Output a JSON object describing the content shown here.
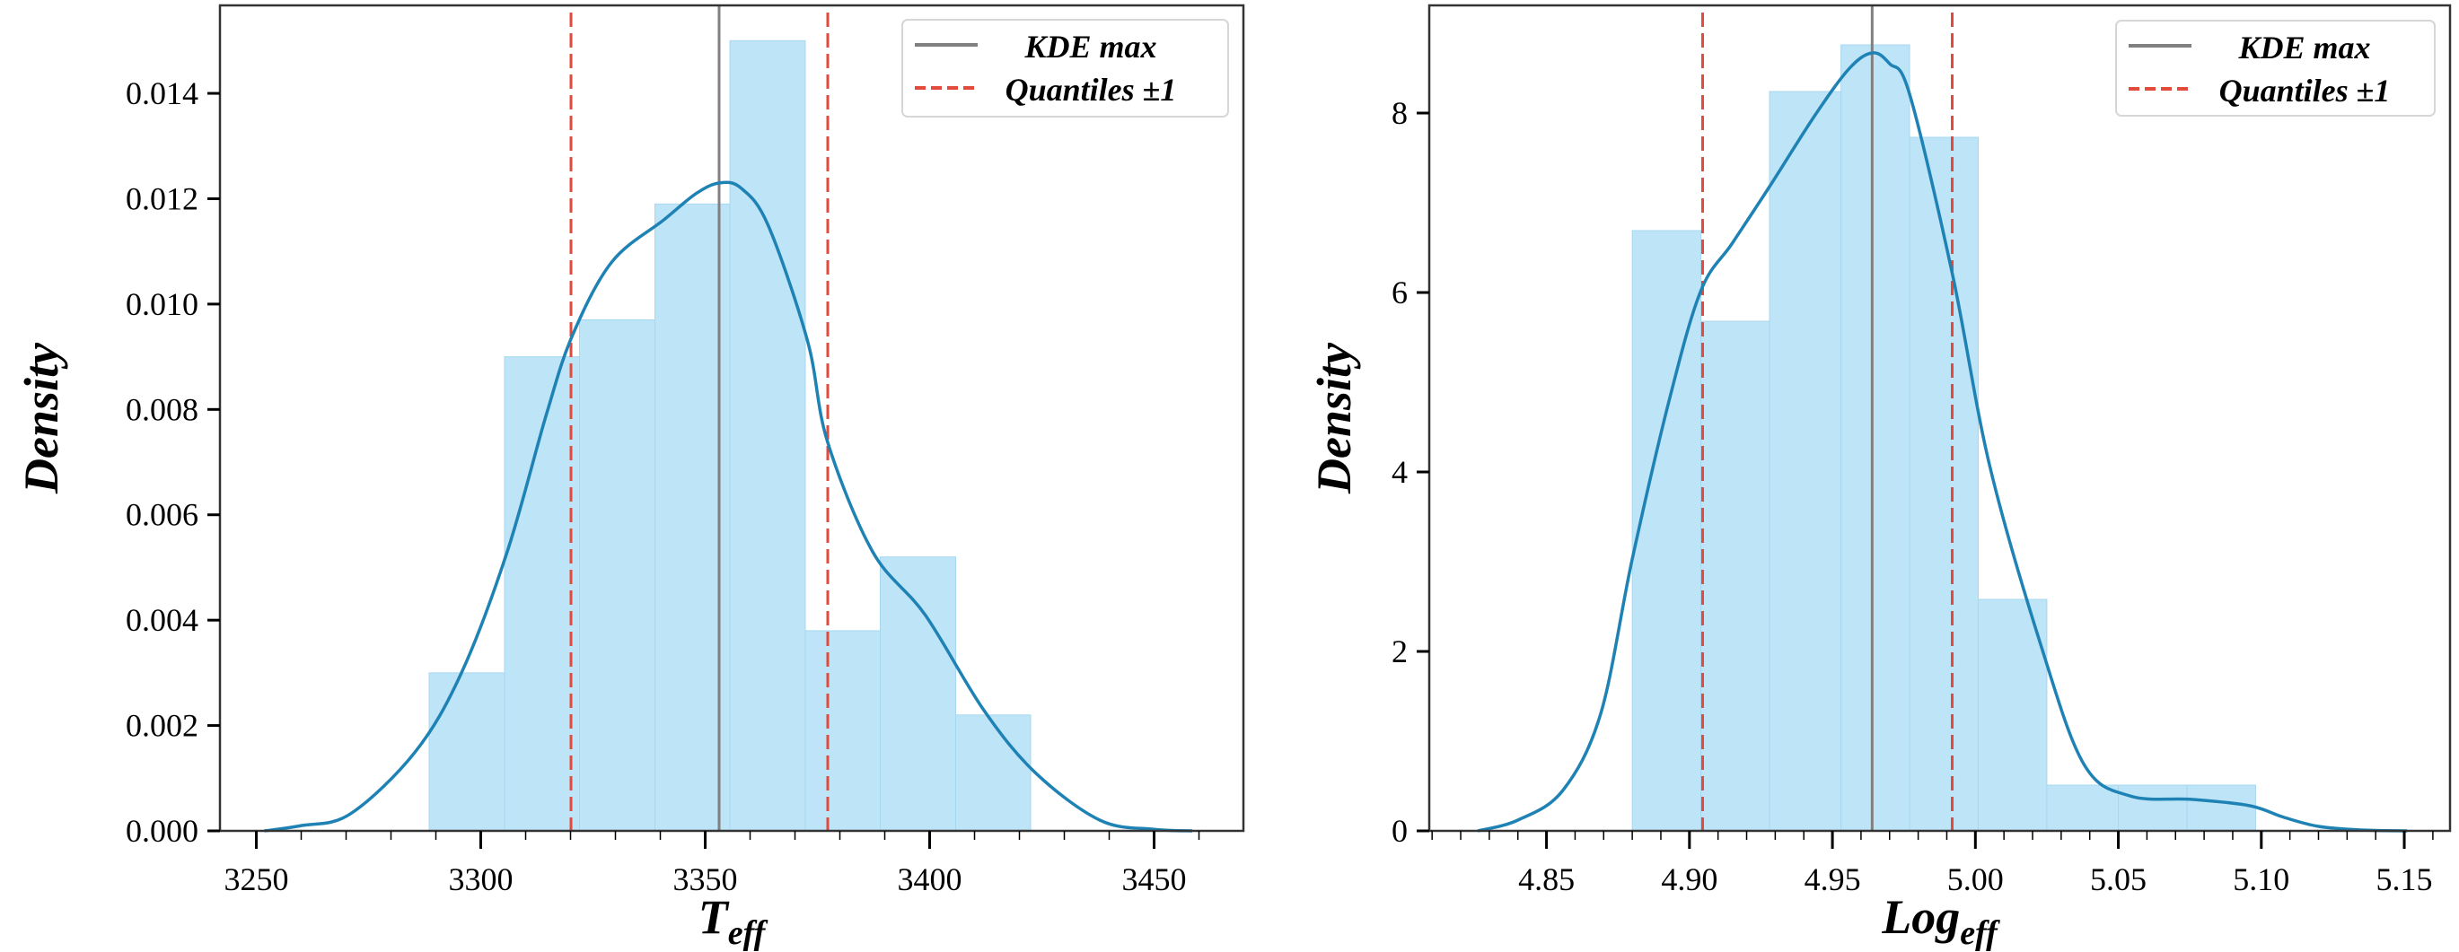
{
  "chart_data": [
    {
      "type": "bar",
      "subtype": "histogram_with_kde",
      "title": "",
      "xlabel": "T",
      "xlabel_sub": "eff",
      "ylabel": "Density",
      "xlim": [
        3241.9,
        3469.9
      ],
      "ylim": [
        0,
        0.01567
      ],
      "xticks": [
        3250,
        3300,
        3350,
        3400,
        3450
      ],
      "xtick_labels": [
        "3250",
        "3300",
        "3350",
        "3400",
        "3450"
      ],
      "x_minor_step": 10,
      "yticks": [
        0,
        0.002,
        0.004,
        0.006,
        0.008,
        0.01,
        0.012,
        0.014
      ],
      "ytick_labels": [
        "0.000",
        "0.002",
        "0.004",
        "0.006",
        "0.008",
        "0.010",
        "0.012",
        "0.014"
      ],
      "grid": false,
      "legend_position": "top-right",
      "bins": [
        3288.5,
        3305.3,
        3322.0,
        3338.8,
        3355.5,
        3372.3,
        3389.0,
        3405.8,
        3422.5
      ],
      "values": [
        0.003,
        0.009,
        0.0097,
        0.0119,
        0.015,
        0.0038,
        0.0052,
        0.0022
      ],
      "kde": {
        "x": [
          3251.8,
          3260,
          3270.9,
          3285.4,
          3295.7,
          3305.9,
          3314.6,
          3320.4,
          3329.2,
          3340.8,
          3348,
          3353.2,
          3358,
          3364,
          3372.8,
          3377.2,
          3387.3,
          3399,
          3412,
          3423.6,
          3438,
          3450,
          3458.5
        ],
        "y": [
          0.0,
          0.0001,
          0.00032,
          0.0015,
          0.003,
          0.0053,
          0.0079,
          0.0094,
          0.0108,
          0.0116,
          0.0121,
          0.0123,
          0.0122,
          0.0115,
          0.0093,
          0.0074,
          0.0053,
          0.0041,
          0.0023,
          0.0011,
          0.0002,
          3e-05,
          0.0
        ]
      },
      "kde_max": 3353.1,
      "quantiles": [
        3320.1,
        3377.3
      ],
      "legend": [
        {
          "label": "KDE max",
          "style": "solid",
          "color": "#808080"
        },
        {
          "label": "Quantiles ±1",
          "style": "dashed",
          "color": "#e24a3b"
        }
      ]
    },
    {
      "type": "bar",
      "subtype": "histogram_with_kde",
      "title": "",
      "xlabel": "Log",
      "xlabel_sub": "eff",
      "ylabel": "Density",
      "xlim": [
        4.809,
        5.166
      ],
      "ylim": [
        0,
        9.2
      ],
      "xticks": [
        4.85,
        4.9,
        4.95,
        5.0,
        5.05,
        5.1,
        5.15
      ],
      "xtick_labels": [
        "4.85",
        "4.90",
        "4.95",
        "5.00",
        "5.05",
        "5.10",
        "5.15"
      ],
      "x_minor_step": 0.01,
      "yticks": [
        0,
        2,
        4,
        6,
        8
      ],
      "ytick_labels": [
        "0",
        "2",
        "4",
        "6",
        "8"
      ],
      "grid": false,
      "legend_position": "top-right",
      "bins": [
        4.88,
        4.904,
        4.928,
        4.953,
        4.977,
        5.001,
        5.025,
        5.05,
        5.074,
        5.098
      ],
      "values": [
        6.69,
        5.68,
        8.24,
        8.76,
        7.73,
        2.58,
        0.51,
        0.51,
        0.51
      ],
      "kde": {
        "x": [
          4.826,
          4.84,
          4.8557,
          4.869,
          4.88,
          4.893,
          4.904,
          4.915,
          4.928,
          4.944,
          4.956,
          4.964,
          4.97,
          4.977,
          4.992,
          5.005,
          5.023,
          5.038,
          5.054,
          5.076,
          5.096,
          5.108,
          5.12,
          5.135,
          5.151
        ],
        "y": [
          0.0,
          0.12,
          0.45,
          1.31,
          3.03,
          4.81,
          6.02,
          6.55,
          7.18,
          7.98,
          8.5,
          8.67,
          8.55,
          8.21,
          6.2,
          4.07,
          2.06,
          0.74,
          0.39,
          0.35,
          0.28,
          0.15,
          0.05,
          0.01,
          0.0
        ]
      },
      "kde_max": 4.9639,
      "quantiles": [
        4.9046,
        4.9919
      ],
      "legend": [
        {
          "label": "KDE max",
          "style": "solid",
          "color": "#808080"
        },
        {
          "label": "Quantiles ±1",
          "style": "dashed",
          "color": "#e24a3b"
        }
      ]
    }
  ],
  "colors": {
    "bar_fill": "#bde4f7",
    "bar_edge": "#a8d8f0",
    "kde_line": "#1f82b4",
    "kde_max_line": "#808080",
    "quantile_line": "#e24a3b",
    "axis": "#333333"
  }
}
